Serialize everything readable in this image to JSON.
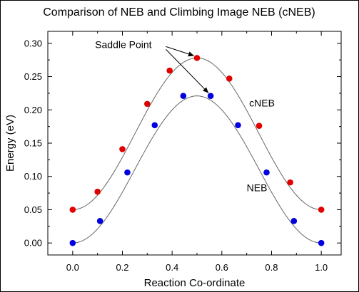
{
  "chart_data": {
    "type": "scatter",
    "title": "Comparison of NEB and Climbing Image NEB (cNEB)",
    "xlabel": "Reaction Co-ordinate",
    "ylabel": "Energy  (eV)",
    "xlim": [
      -0.1,
      1.08
    ],
    "ylim": [
      -0.018,
      0.318
    ],
    "xticks": [
      "0.0",
      "0.2",
      "0.4",
      "0.6",
      "0.8",
      "1.0"
    ],
    "yticks": [
      "0.00",
      "0.05",
      "0.10",
      "0.15",
      "0.20",
      "0.25",
      "0.30"
    ],
    "grid": false,
    "series": [
      {
        "name": "cNEB",
        "color": "#e00000",
        "x": [
          0.0,
          0.1,
          0.2,
          0.3,
          0.4,
          0.5,
          0.6,
          0.7,
          0.8,
          0.9,
          1.0
        ],
        "y": [
          0.05,
          0.077,
          0.141,
          0.209,
          0.259,
          0.278,
          0.247,
          0.176,
          0.091,
          0.05,
          0.05
        ],
        "x_points": [
          0.0,
          0.1,
          0.2,
          0.3,
          0.39,
          0.5,
          0.63,
          0.75,
          0.875,
          1.0
        ],
        "y_points": [
          0.05,
          0.077,
          0.141,
          0.209,
          0.259,
          0.278,
          0.247,
          0.176,
          0.091,
          0.05
        ]
      },
      {
        "name": "NEB",
        "color": "#0000e0",
        "x_points": [
          0.0,
          0.11,
          0.22,
          0.33,
          0.445,
          0.555,
          0.665,
          0.78,
          0.89,
          1.0
        ],
        "y_points": [
          0.0,
          0.033,
          0.106,
          0.177,
          0.221,
          0.221,
          0.177,
          0.106,
          0.033,
          0.0
        ]
      }
    ],
    "annotations": {
      "saddle_point": "Saddle Point",
      "cneb_label": "cNEB",
      "neb_label": "NEB"
    }
  }
}
